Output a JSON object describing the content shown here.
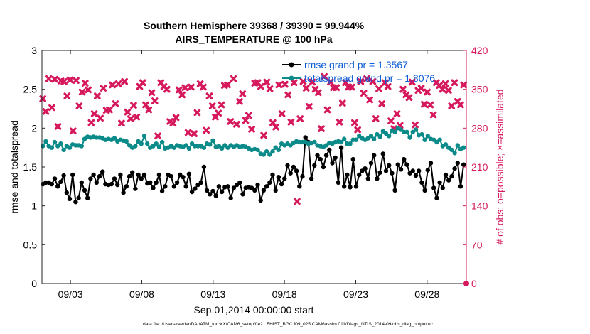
{
  "chart_data": {
    "type": "line",
    "title": "Southern Hemisphere 39368 / 39390 = 99.944%",
    "subtitle": "AIRS_TEMPERATURE @ 100 hPa",
    "xlabel": "Sep.01,2014 00:00:00 start",
    "ylabel": "rmse and totalspread",
    "y2label": "# of obs: o=possible; ×=assimilated",
    "xticks": [
      {
        "day": 3,
        "label": "09/03"
      },
      {
        "day": 8,
        "label": "09/08"
      },
      {
        "day": 13,
        "label": "09/13"
      },
      {
        "day": 18,
        "label": "09/18"
      },
      {
        "day": 23,
        "label": "09/23"
      },
      {
        "day": 28,
        "label": "09/28"
      }
    ],
    "xlim": [
      1.0,
      30.75
    ],
    "ylim": [
      0,
      3
    ],
    "yticks": [
      "0",
      "0.5",
      "1",
      "1.5",
      "2",
      "2.5",
      "3"
    ],
    "y2lim": [
      0,
      420
    ],
    "y2ticks": [
      "0",
      "70",
      "140",
      "210",
      "280",
      "350",
      "420"
    ],
    "grid": false,
    "legend_position": "top-right",
    "series": [
      {
        "name": "rmse grand pr = 1.3567",
        "color": "#000000",
        "axis": "left",
        "values": [
          1.28,
          1.3,
          1.3,
          1.28,
          1.35,
          1.25,
          1.31,
          1.39,
          1.17,
          1.09,
          1.4,
          1.05,
          1.1,
          1.3,
          1.2,
          1.1,
          1.35,
          1.4,
          1.3,
          1.38,
          1.44,
          1.28,
          1.27,
          1.28,
          1.35,
          1.27,
          1.4,
          1.17,
          1.25,
          1.38,
          1.43,
          1.22,
          1.4,
          1.35,
          1.4,
          1.29,
          1.3,
          1.23,
          1.3,
          1.4,
          1.19,
          1.25,
          1.4,
          1.38,
          1.25,
          1.3,
          1.4,
          1.37,
          1.25,
          1.41,
          1.18,
          1.22,
          1.27,
          1.3,
          1.5,
          1.2,
          1.15,
          1.19,
          1.13,
          1.25,
          1.18,
          1.24,
          1.25,
          1.1,
          1.23,
          1.27,
          1.3,
          1.15,
          1.23,
          1.24,
          1.23,
          1.2,
          1.27,
          1.07,
          1.2,
          1.25,
          1.3,
          1.4,
          1.2,
          1.37,
          1.28,
          1.35,
          1.52,
          1.42,
          1.5,
          1.45,
          1.25,
          1.38,
          1.88,
          1.82,
          1.35,
          1.52,
          1.65,
          1.6,
          1.5,
          1.65,
          1.72,
          1.55,
          1.62,
          1.3,
          1.75,
          1.25,
          1.4,
          1.24,
          1.6,
          1.25,
          1.4,
          1.45,
          1.48,
          1.35,
          1.55,
          1.65,
          1.35,
          1.43,
          1.67,
          1.45,
          1.52,
          1.42,
          1.2,
          1.53,
          1.47,
          1.6,
          1.53,
          1.42,
          1.45,
          1.39,
          1.45,
          1.3,
          1.2,
          1.46,
          1.55,
          1.23,
          1.1,
          1.3,
          1.23,
          1.4,
          1.33,
          1.38,
          1.48,
          1.55,
          1.25,
          1.53
        ]
      },
      {
        "name": "totalspread grand pr = 1.8076",
        "color": "#0a8a88",
        "axis": "left",
        "values": [
          1.77,
          1.83,
          1.77,
          1.75,
          1.82,
          1.77,
          1.8,
          1.72,
          1.77,
          1.75,
          1.79,
          1.78,
          1.78,
          1.77,
          1.86,
          1.89,
          1.88,
          1.89,
          1.88,
          1.88,
          1.87,
          1.85,
          1.86,
          1.85,
          1.87,
          1.83,
          1.85,
          1.84,
          1.83,
          1.78,
          1.75,
          1.77,
          1.83,
          1.8,
          1.9,
          1.8,
          1.75,
          1.77,
          1.8,
          1.76,
          1.82,
          1.74,
          1.75,
          1.77,
          1.75,
          1.78,
          1.77,
          1.76,
          1.78,
          1.74,
          1.8,
          1.77,
          1.77,
          1.77,
          1.75,
          1.8,
          1.79,
          1.84,
          1.76,
          1.77,
          1.74,
          1.78,
          1.75,
          1.78,
          1.76,
          1.78,
          1.76,
          1.77,
          1.76,
          1.74,
          1.72,
          1.73,
          1.72,
          1.67,
          1.66,
          1.7,
          1.66,
          1.7,
          1.75,
          1.72,
          1.8,
          1.78,
          1.8,
          1.78,
          1.81,
          1.83,
          1.82,
          1.82,
          1.82,
          1.8,
          1.81,
          1.82,
          1.78,
          1.77,
          1.76,
          1.78,
          1.81,
          1.8,
          1.82,
          1.83,
          1.82,
          1.86,
          1.8,
          1.8,
          1.85,
          1.85,
          1.9,
          1.87,
          1.85,
          1.87,
          1.9,
          1.86,
          1.92,
          1.89,
          1.96,
          1.93,
          1.9,
          1.97,
          1.95,
          2.0,
          1.98,
          1.95,
          1.95,
          1.88,
          1.95,
          1.98,
          1.91,
          1.92,
          1.85,
          1.9,
          1.86,
          1.85,
          1.82,
          1.85,
          1.77,
          1.79,
          1.75,
          1.72,
          1.68,
          1.78,
          1.73,
          1.75
        ]
      }
    ],
    "obs_assimilated": {
      "color": "#d6185c",
      "axis": "right",
      "values": [
        333,
        310,
        369,
        317,
        368,
        283,
        365,
        364,
        338,
        367,
        275,
        366,
        320,
        345,
        361,
        349,
        290,
        306,
        338,
        298,
        352,
        312,
        313,
        358,
        324,
        360,
        289,
        364,
        309,
        297,
        321,
        300,
        355,
        362,
        322,
        313,
        344,
        329,
        266,
        362,
        355,
        350,
        292,
        289,
        299,
        349,
        340,
        353,
        272,
        354,
        270,
        308,
        360,
        354,
        276,
        338,
        320,
        300,
        307,
        322,
        357,
        358,
        292,
        369,
        287,
        328,
        342,
        294,
        303,
        278,
        361,
        362,
        355,
        267,
        363,
        351,
        290,
        282,
        358,
        306,
        359,
        340,
        291,
        362,
        148,
        297,
        364,
        352,
        319,
        363,
        350,
        344,
        279,
        373,
        313,
        363,
        353,
        353,
        291,
        325,
        362,
        354,
        354,
        290,
        277,
        364,
        343,
        369,
        331,
        364,
        297,
        351,
        324,
        362,
        355,
        293,
        279,
        306,
        285,
        350,
        340,
        335,
        363,
        286,
        348,
        352,
        323,
        345,
        322,
        304,
        362,
        357,
        350,
        360,
        348,
        320,
        362,
        328,
        322,
        358
      ]
    },
    "obs_possible_marker": {
      "x_day": 30.75,
      "value": 0,
      "color": "#d6185c"
    },
    "footer": "data file: /Users/raeder/DAI/ATM_forcXX/CAM6_setup/f.e21.FHIST_BGC.f09_025.CAM6assim.011/Diags_NTrS_2014-09/obs_diag_output.nc"
  }
}
